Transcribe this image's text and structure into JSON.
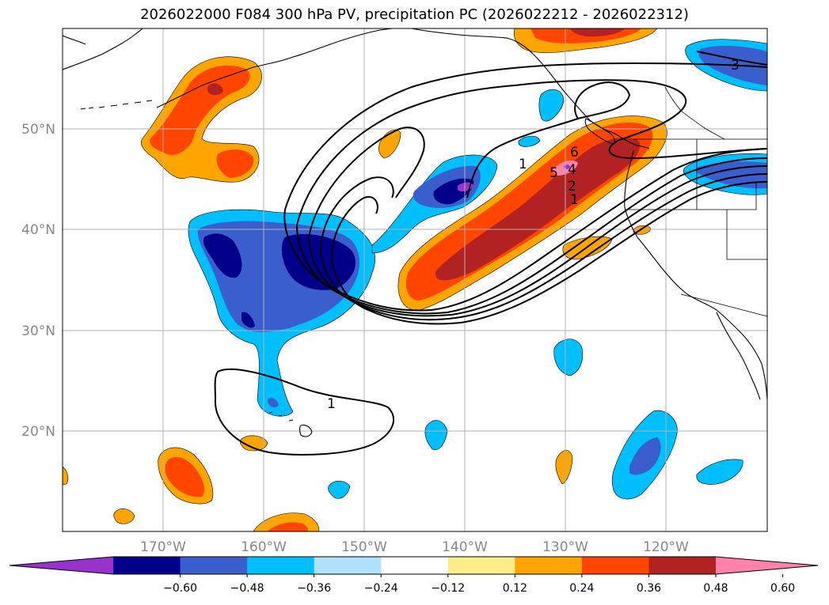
{
  "title": "2026022000 F084 300 hPa PV, precipitation PC (2026022212 - 2026022312)",
  "map": {
    "lon_labels": [
      "170°W",
      "160°W",
      "150°W",
      "140°W",
      "130°W",
      "120°W"
    ],
    "lat_labels": [
      "50°N",
      "40°N",
      "30°N",
      "20°N"
    ],
    "contour_labels": [
      "1",
      "1",
      "1",
      "2",
      "3",
      "4",
      "5",
      "6"
    ]
  },
  "colorbar": {
    "colors": [
      "#9932cc",
      "#00008b",
      "#3a5fcd",
      "#00bfff",
      "#b0e2ff",
      "#ffffff",
      "#ffec8b",
      "#ffa500",
      "#ff4500",
      "#b22222",
      "#ff82ab"
    ],
    "tick_labels": [
      "−0.60",
      "−0.48",
      "−0.36",
      "−0.24",
      "−0.12",
      "0.12",
      "0.24",
      "0.36",
      "0.48",
      "0.60"
    ]
  }
}
